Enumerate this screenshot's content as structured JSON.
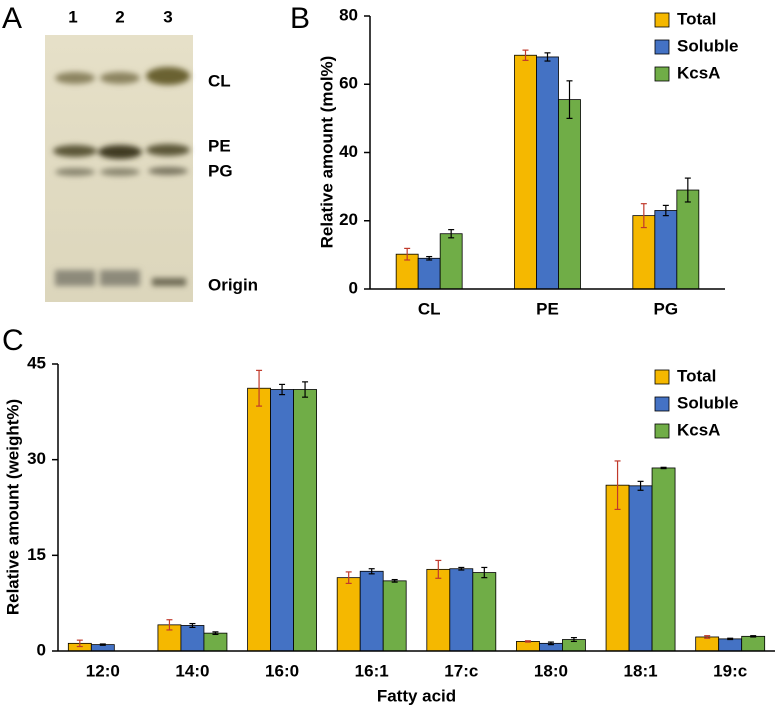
{
  "panel_a": {
    "label": "A",
    "lanes": [
      "1",
      "2",
      "3"
    ],
    "bands": [
      "CL",
      "PE",
      "PG",
      "Origin"
    ]
  },
  "chart_data": [
    {
      "type": "bar",
      "panel": "B",
      "y_label": "Relative amount (mol%)",
      "categories": [
        "CL",
        "PE",
        "PG"
      ],
      "series": [
        {
          "name": "Total",
          "color": "#f5b800",
          "error_color": "#c0392b",
          "values": [
            10.2,
            68.5,
            21.5
          ],
          "errors": [
            1.7,
            1.5,
            3.5
          ]
        },
        {
          "name": "Soluble",
          "color": "#4472c4",
          "error_color": "#000000",
          "values": [
            9,
            68,
            23
          ],
          "errors": [
            0.5,
            1.2,
            1.5
          ]
        },
        {
          "name": "KcsA",
          "color": "#70ad47",
          "error_color": "#000000",
          "values": [
            16.2,
            55.5,
            29
          ],
          "errors": [
            1.2,
            5.5,
            3.5
          ]
        }
      ],
      "ylim": [
        0,
        80
      ],
      "yticks": [
        0,
        20,
        40,
        60,
        80
      ],
      "legend": "top-right"
    },
    {
      "type": "bar",
      "panel": "C",
      "y_label": "Relative amount (weight%)",
      "x_label": "Fatty acid",
      "categories": [
        "12:0",
        "14:0",
        "16:0",
        "16:1",
        "17:c",
        "18:0",
        "18:1",
        "19:c"
      ],
      "series": [
        {
          "name": "Total",
          "color": "#f5b800",
          "error_color": "#c0392b",
          "values": [
            1.2,
            4.1,
            41.2,
            11.5,
            12.8,
            1.5,
            26,
            2.2
          ],
          "errors": [
            0.5,
            0.8,
            2.8,
            0.9,
            1.4,
            0.1,
            3.8,
            0.2
          ]
        },
        {
          "name": "Soluble",
          "color": "#4472c4",
          "error_color": "#000000",
          "values": [
            1,
            4,
            41,
            12.5,
            12.9,
            1.2,
            25.9,
            1.9
          ],
          "errors": [
            0.1,
            0.3,
            0.8,
            0.4,
            0.2,
            0.2,
            0.7,
            0.1
          ]
        },
        {
          "name": "KcsA",
          "color": "#70ad47",
          "error_color": "#000000",
          "values": [
            null,
            2.8,
            41,
            11,
            12.3,
            1.8,
            28.7,
            2.3
          ],
          "errors": [
            null,
            0.2,
            1.2,
            0.2,
            0.8,
            0.3,
            0.1,
            0.1
          ]
        }
      ],
      "ylim": [
        0,
        45
      ],
      "yticks": [
        0,
        15,
        30,
        45
      ],
      "legend": "top-right"
    }
  ]
}
